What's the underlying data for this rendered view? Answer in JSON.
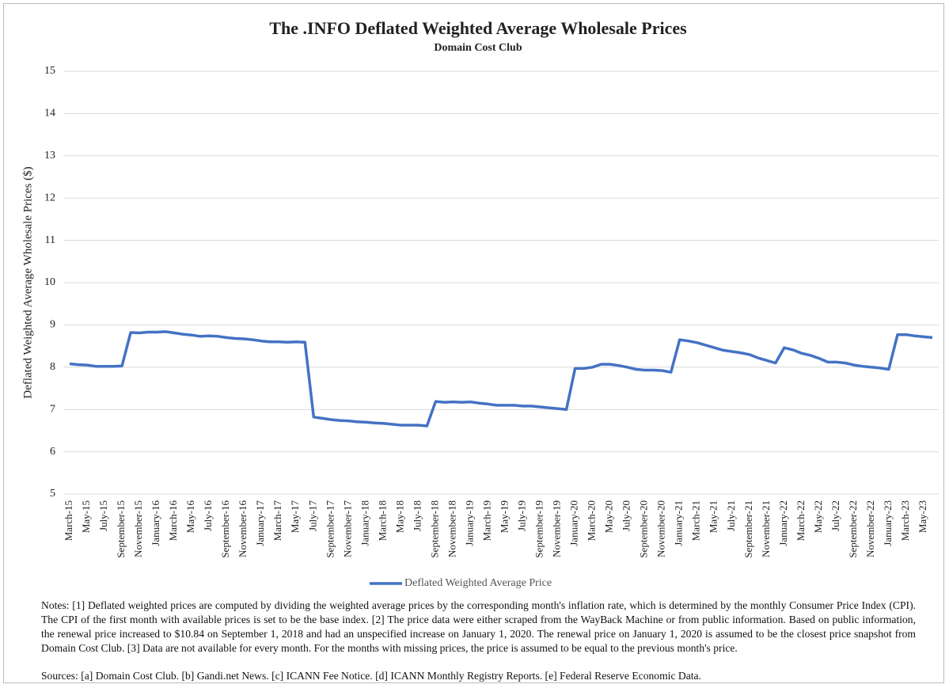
{
  "chart_data": {
    "type": "line",
    "title": "The .INFO Deflated Weighted Average Wholesale Prices",
    "subtitle": "Domain Cost Club",
    "y_label": "Deflated Weighted Average Wholesale Prices ($)",
    "categories": [
      "March-15",
      null,
      "May-15",
      null,
      "July-15",
      null,
      "September-15",
      null,
      "November-15",
      null,
      "January-16",
      null,
      "March-16",
      null,
      "May-16",
      null,
      "July-16",
      null,
      "September-16",
      null,
      "November-16",
      null,
      "January-17",
      null,
      "March-17",
      null,
      "May-17",
      null,
      "July-17",
      null,
      "September-17",
      null,
      "November-17",
      null,
      "January-18",
      null,
      "March-18",
      null,
      "May-18",
      null,
      "July-18",
      null,
      "September-18",
      null,
      "November-18",
      null,
      "January-19",
      null,
      "March-19",
      null,
      "May-19",
      null,
      "July-19",
      null,
      "September-19",
      null,
      "November-19",
      null,
      "January-20",
      null,
      "March-20",
      null,
      "May-20",
      null,
      "July-20",
      null,
      "September-20",
      null,
      "November-20",
      null,
      "January-21",
      null,
      "March-21",
      null,
      "May-21",
      null,
      "July-21",
      null,
      "September-21",
      null,
      "November-21",
      null,
      "January-22",
      null,
      "March-22",
      null,
      "May-22",
      null,
      "July-22",
      null,
      "September-22",
      null,
      "November-22",
      null,
      "January-23",
      null,
      "March-23",
      null,
      "May-23",
      null
    ],
    "series": [
      {
        "name": "Deflated Weighted Average Price",
        "color": "#4472c4",
        "values": [
          8.08,
          8.06,
          8.05,
          8.02,
          8.02,
          8.02,
          8.03,
          8.82,
          8.81,
          8.83,
          8.83,
          8.84,
          8.81,
          8.78,
          8.76,
          8.73,
          8.74,
          8.73,
          8.7,
          8.68,
          8.67,
          8.65,
          8.62,
          8.6,
          8.6,
          8.59,
          8.6,
          8.59,
          6.82,
          6.79,
          6.76,
          6.74,
          6.73,
          6.71,
          6.7,
          6.68,
          6.67,
          6.65,
          6.63,
          6.63,
          6.63,
          6.61,
          7.19,
          7.17,
          7.18,
          7.17,
          7.18,
          7.15,
          7.13,
          7.1,
          7.1,
          7.1,
          7.08,
          7.08,
          7.06,
          7.04,
          7.02,
          7.0,
          7.97,
          7.97,
          8.0,
          8.07,
          8.07,
          8.04,
          8.0,
          7.95,
          7.93,
          7.93,
          7.92,
          7.88,
          8.65,
          8.62,
          8.58,
          8.52,
          8.46,
          8.4,
          8.37,
          8.34,
          8.3,
          8.22,
          8.16,
          8.1,
          8.46,
          8.41,
          8.33,
          8.28,
          8.21,
          8.12,
          8.12,
          8.1,
          8.05,
          8.02,
          8.0,
          7.98,
          7.95,
          8.77,
          8.77,
          8.74,
          8.72,
          8.7
        ]
      }
    ],
    "ylim": [
      5,
      15
    ],
    "yticks": [
      5,
      6,
      7,
      8,
      9,
      10,
      11,
      12,
      13,
      14,
      15
    ],
    "grid": true,
    "legend": "bottom",
    "notes": "Notes: [1] Deflated weighted prices are computed by dividing the weighted average prices by the corresponding month's inflation rate, which is determined by the monthly Consumer Price Index (CPI). The CPI of the first month with available prices is set to be the base index. [2] The price data were either scraped from the WayBack Machine or from public information. Based on public information, the renewal price increased to $10.84 on September 1, 2018 and had an unspecified increase on January 1, 2020. The renewal price on January 1, 2020 is assumed to be the closest price snapshot from Domain Cost Club. [3] Data are not available for every month. For the months with missing prices, the price is assumed to be equal to the previous month's price.",
    "sources": "Sources: [a] Domain Cost Club. [b] Gandi.net News. [c] ICANN Fee Notice. [d] ICANN Monthly Registry Reports. [e] Federal Reserve Economic Data."
  }
}
